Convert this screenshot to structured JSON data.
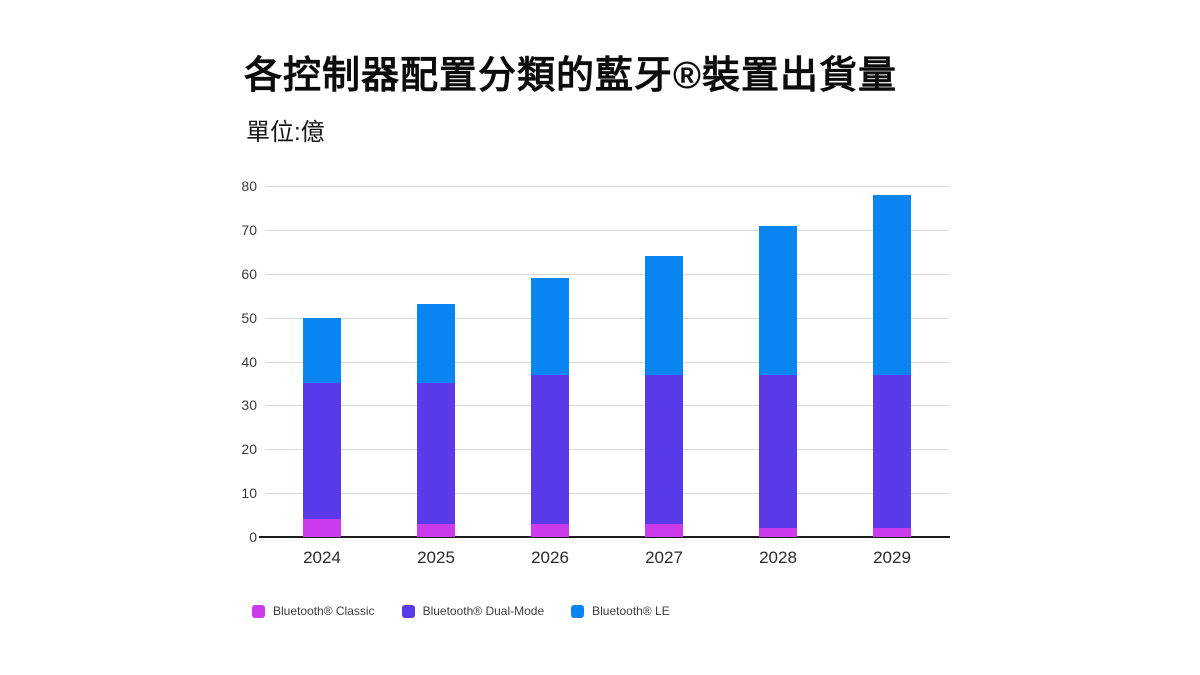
{
  "header": {
    "title": "各控制器配置分類的藍牙®裝置出貨量",
    "unit_label": "單位:億"
  },
  "chart_data": {
    "type": "bar",
    "stacked": true,
    "title": "各控制器配置分類的藍牙®裝置出貨量",
    "subtitle_unit": "單位:億",
    "categories": [
      "2024",
      "2025",
      "2026",
      "2027",
      "2028",
      "2029"
    ],
    "series": [
      {
        "name": "Bluetooth® Classic",
        "color": "#cb3beb",
        "values": [
          4,
          3,
          3,
          3,
          2,
          2
        ]
      },
      {
        "name": "Bluetooth® Dual-Mode",
        "color": "#5a39e9",
        "values": [
          31,
          32,
          34,
          34,
          35,
          35
        ]
      },
      {
        "name": "Bluetooth® LE",
        "color": "#0985f2",
        "values": [
          15,
          18,
          22,
          27,
          34,
          41
        ]
      }
    ],
    "stack_totals": [
      50,
      53,
      59,
      64,
      71,
      78
    ],
    "xlabel": "",
    "ylabel": "",
    "ylim": [
      0,
      80
    ],
    "yticks": [
      0,
      10,
      20,
      30,
      40,
      50,
      60,
      70,
      80
    ],
    "grid": true,
    "legend_position": "bottom"
  },
  "colors": {
    "background": "#ffffff",
    "gridline": "#d9d9d9",
    "axis_line": "#1c1c1c",
    "tick_text": "#3a3a3a",
    "title_text": "#0b0b0b"
  }
}
